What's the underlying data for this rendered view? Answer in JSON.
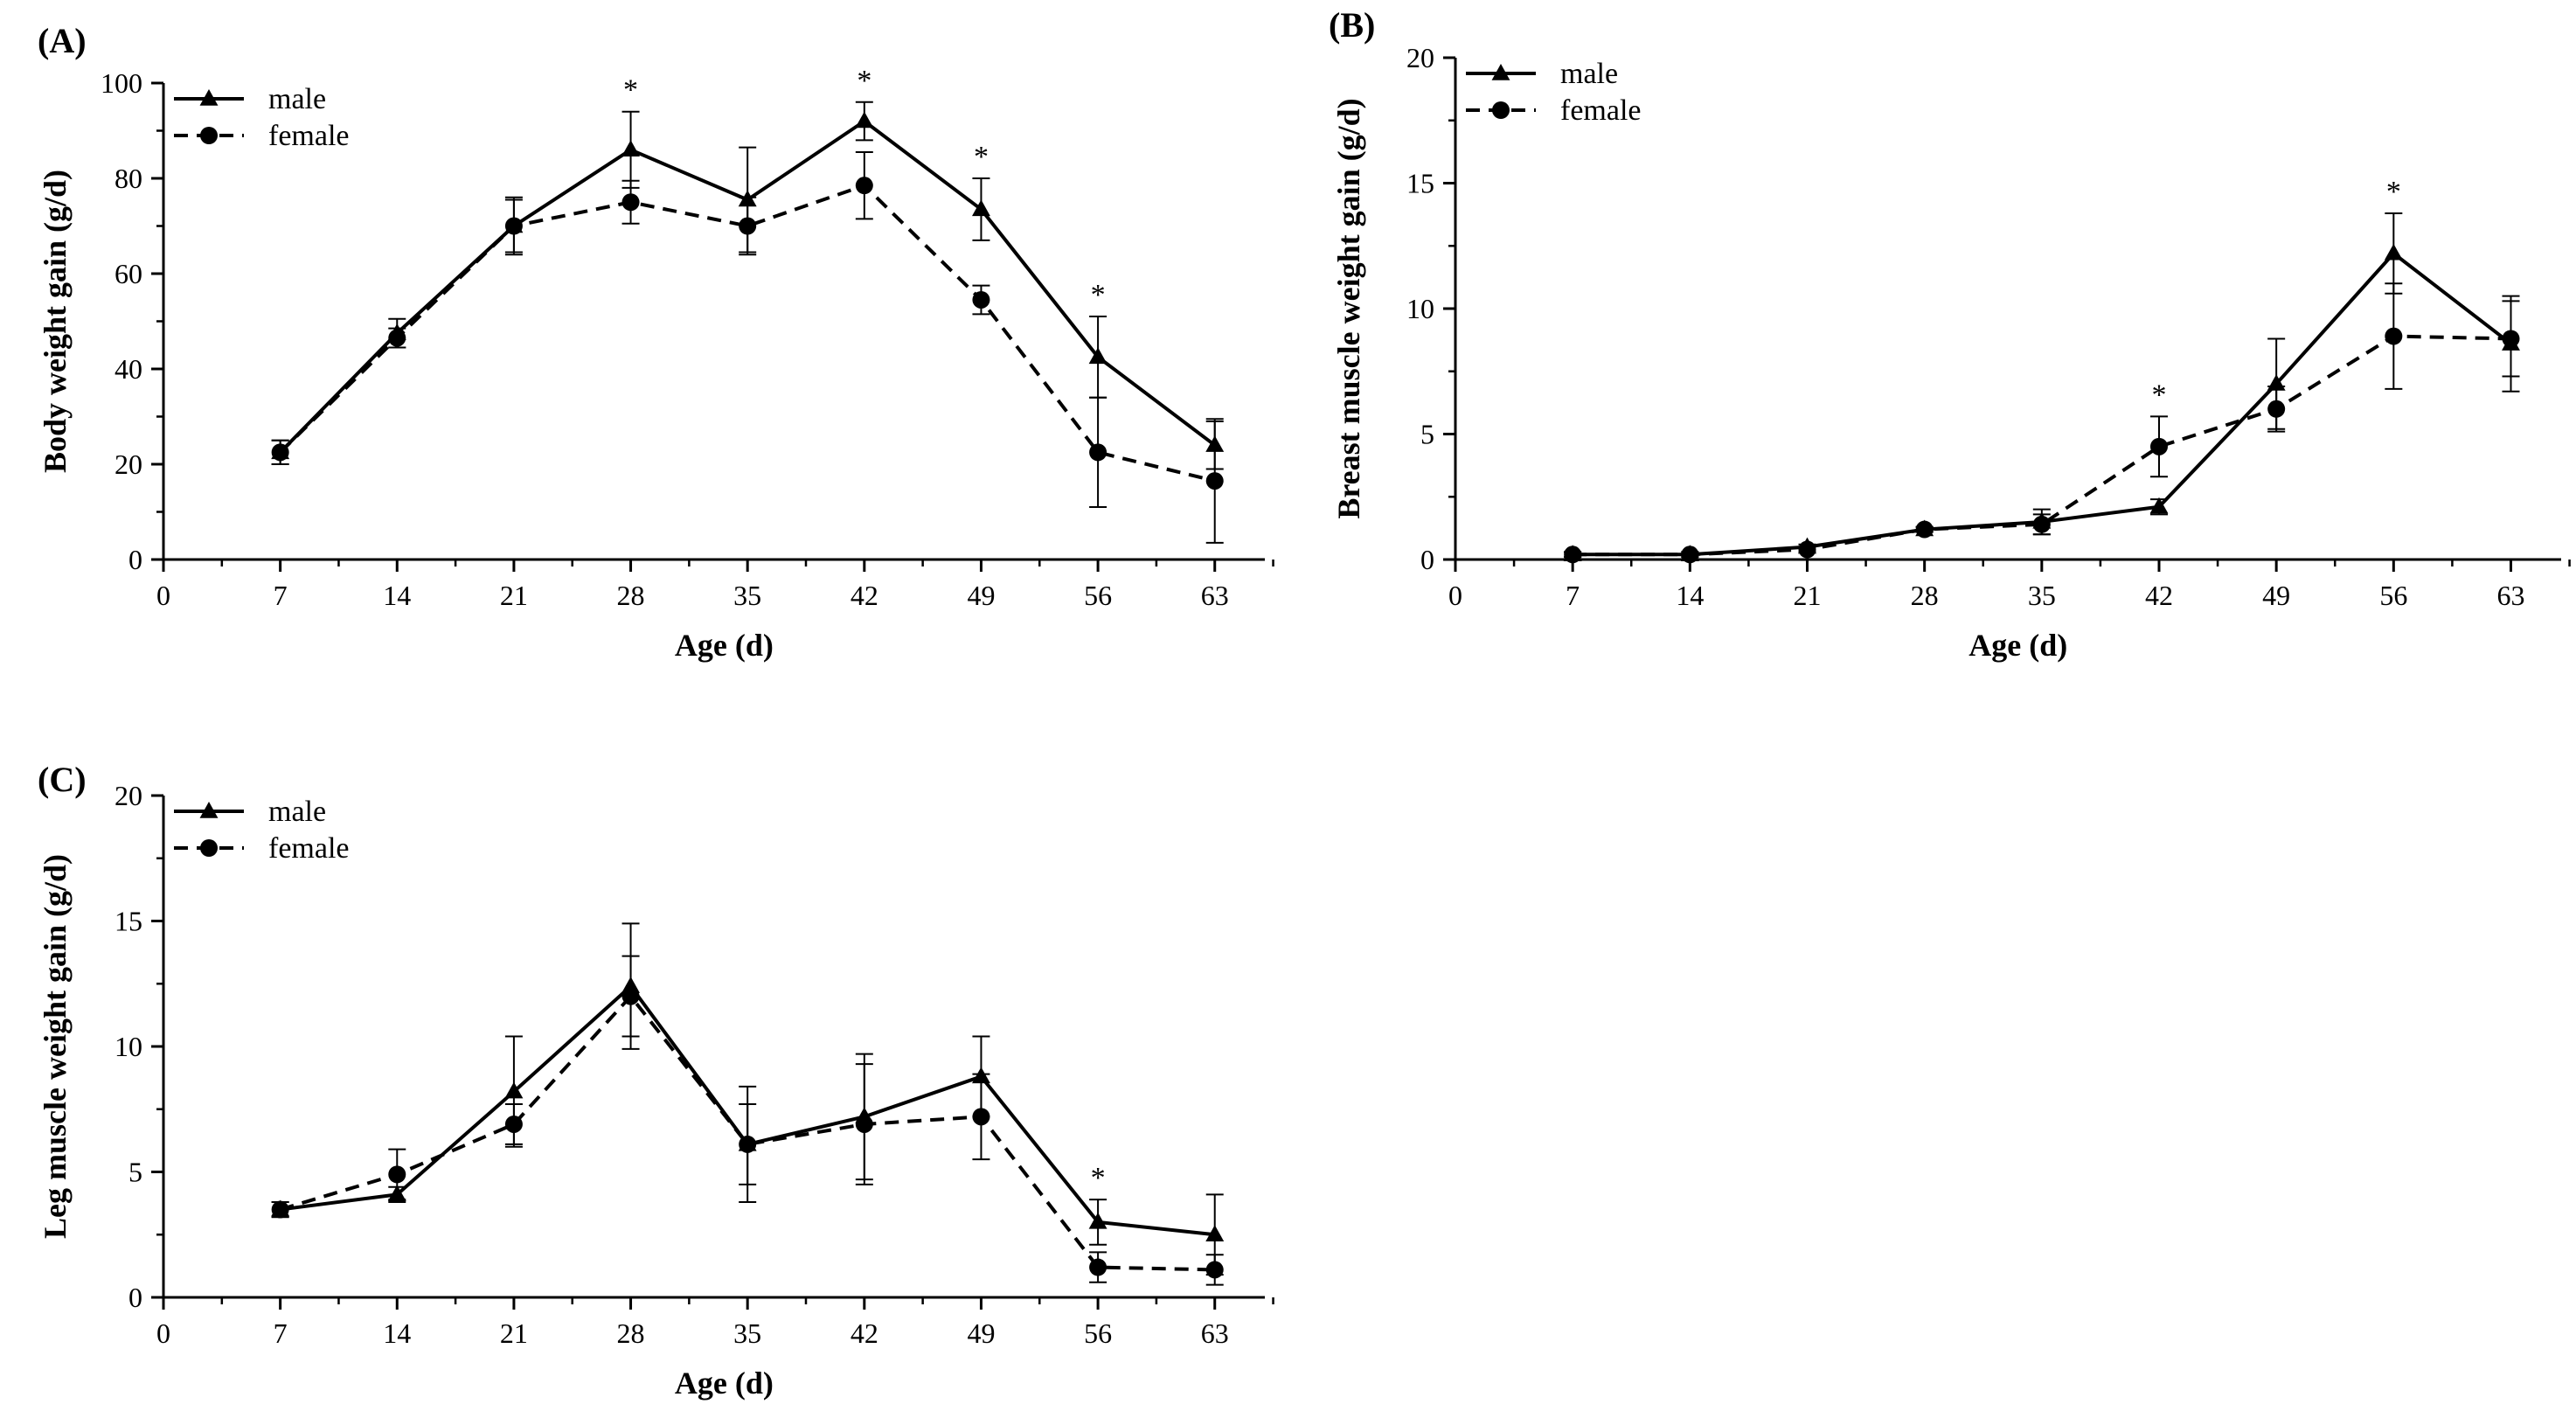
{
  "chart_data": [
    {
      "type": "line",
      "panel_label": "(A)",
      "xlabel": "Age (d)",
      "ylabel": "Body weight gain (g/d)",
      "xlim": [
        0,
        66
      ],
      "ylim": [
        0,
        100
      ],
      "x_ticks": [
        0,
        7,
        14,
        21,
        28,
        35,
        42,
        49,
        56,
        63
      ],
      "y_ticks": [
        0,
        20,
        40,
        60,
        80,
        100
      ],
      "x": [
        7,
        14,
        21,
        28,
        35,
        42,
        49,
        56,
        63
      ],
      "series": [
        {
          "name": "male",
          "marker": "triangle",
          "line": "solid",
          "values": [
            22.5,
            47.5,
            70,
            86,
            75.5,
            92,
            73.5,
            42.5,
            24
          ],
          "errors": [
            2.5,
            3,
            6,
            8,
            11,
            4,
            6.5,
            8.5,
            5
          ]
        },
        {
          "name": "female",
          "marker": "circle",
          "line": "dashed",
          "values": [
            22.5,
            46.5,
            70,
            75,
            70,
            78.5,
            54.5,
            22.5,
            16.5
          ],
          "errors": [
            2.5,
            2,
            5.5,
            4.5,
            6,
            7,
            3,
            11.5,
            13
          ]
        }
      ],
      "significance": [
        {
          "x": 28,
          "label": "*"
        },
        {
          "x": 42,
          "label": "*"
        },
        {
          "x": 49,
          "label": "*"
        },
        {
          "x": 56,
          "label": "*"
        }
      ],
      "legend": "top-left"
    },
    {
      "type": "line",
      "panel_label": "(B)",
      "xlabel": "Age (d)",
      "ylabel": "Breast muscle weight gain (g/d)",
      "xlim": [
        0,
        66
      ],
      "ylim": [
        0,
        20
      ],
      "x_ticks": [
        0,
        7,
        14,
        21,
        28,
        35,
        42,
        49,
        56,
        63
      ],
      "y_ticks": [
        0,
        5,
        10,
        15,
        20
      ],
      "x": [
        7,
        14,
        21,
        28,
        35,
        42,
        49,
        56,
        63
      ],
      "series": [
        {
          "name": "male",
          "marker": "triangle",
          "line": "solid",
          "values": [
            0.2,
            0.2,
            0.5,
            1.2,
            1.5,
            2.1,
            7,
            12.2,
            8.6
          ],
          "errors": [
            0.1,
            0.1,
            0.1,
            0.1,
            0.5,
            0.3,
            1.8,
            1.6,
            1.9
          ]
        },
        {
          "name": "female",
          "marker": "circle",
          "line": "dashed",
          "values": [
            0.2,
            0.2,
            0.4,
            1.2,
            1.4,
            4.5,
            6,
            8.9,
            8.8
          ],
          "errors": [
            0.1,
            0.1,
            0.1,
            0.1,
            0.4,
            1.2,
            0.9,
            2.1,
            1.5
          ]
        }
      ],
      "significance": [
        {
          "x": 42,
          "label": "*"
        },
        {
          "x": 56,
          "label": "*"
        }
      ],
      "legend": "top-left"
    },
    {
      "type": "line",
      "panel_label": "(C)",
      "xlabel": "Age (d)",
      "ylabel": "Leg muscle weight gain (g/d)",
      "xlim": [
        0,
        66
      ],
      "ylim": [
        0,
        20
      ],
      "x_ticks": [
        0,
        7,
        14,
        21,
        28,
        35,
        42,
        49,
        56,
        63
      ],
      "y_ticks": [
        0,
        5,
        10,
        15,
        20
      ],
      "x": [
        7,
        14,
        21,
        28,
        35,
        42,
        49,
        56,
        63
      ],
      "series": [
        {
          "name": "male",
          "marker": "triangle",
          "line": "solid",
          "values": [
            3.5,
            4.1,
            8.2,
            12.4,
            6.1,
            7.2,
            8.8,
            3,
            2.5
          ],
          "errors": [
            0.3,
            0.3,
            2.2,
            2.5,
            1.6,
            2.5,
            1.6,
            0.9,
            1.6
          ]
        },
        {
          "name": "female",
          "marker": "circle",
          "line": "dashed",
          "values": [
            3.5,
            4.9,
            6.9,
            12,
            6.1,
            6.9,
            7.2,
            1.2,
            1.1
          ],
          "errors": [
            0.3,
            1,
            0.8,
            1.6,
            2.3,
            2.4,
            1.7,
            0.6,
            0.6
          ]
        }
      ],
      "significance": [
        {
          "x": 56,
          "label": "*"
        }
      ],
      "legend": "top-left"
    }
  ]
}
